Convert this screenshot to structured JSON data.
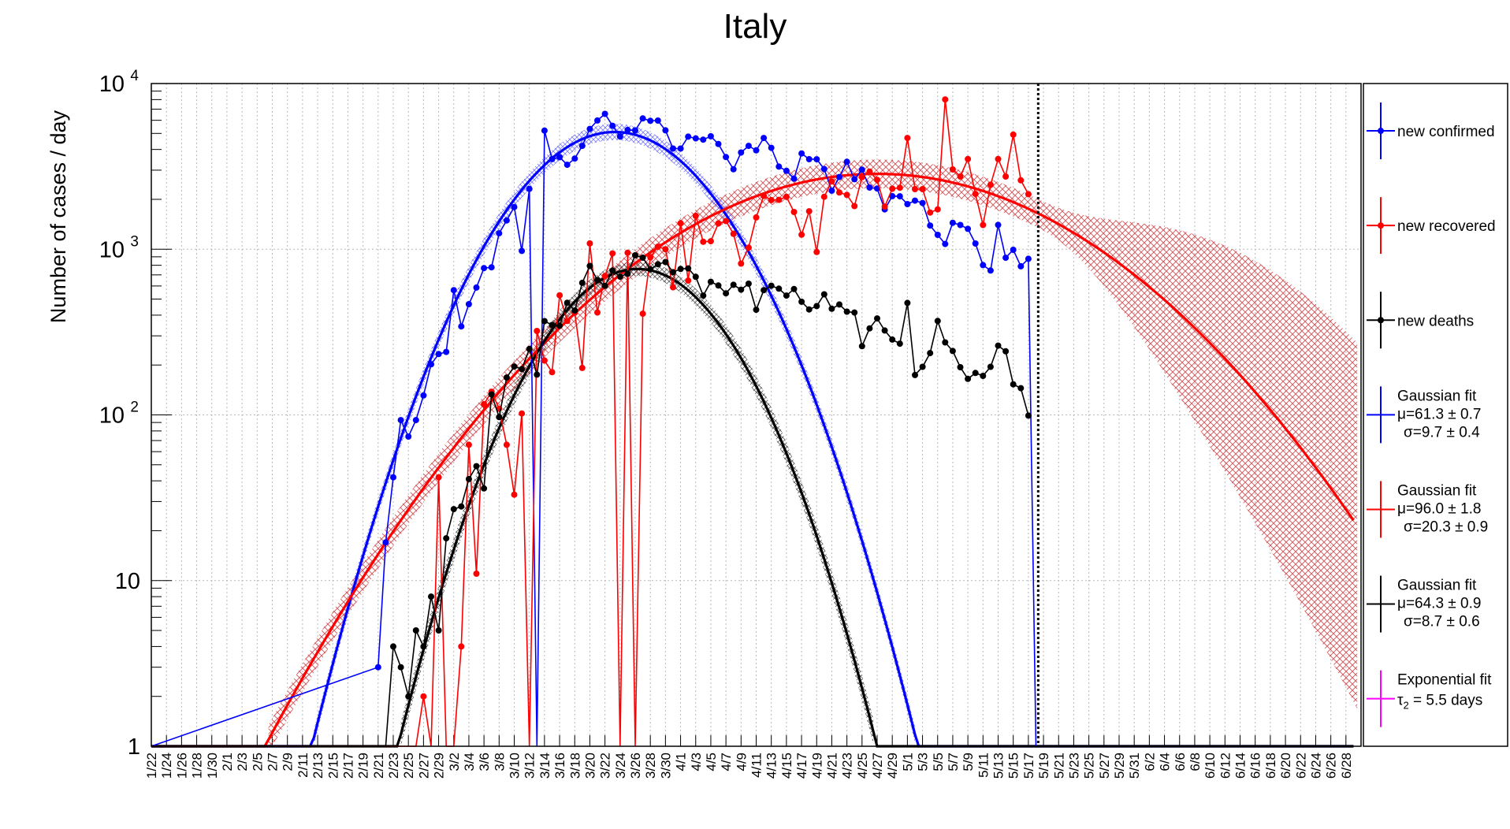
{
  "chart_data": {
    "type": "line",
    "title": "Italy",
    "xlabel": "",
    "ylabel": "Number of cases / day",
    "y_scale": "log",
    "ylim": [
      1,
      10000
    ],
    "y_ticks": [
      {
        "value": 1,
        "label": "1"
      },
      {
        "value": 10,
        "label": "10"
      },
      {
        "value": 100,
        "label": "10",
        "exp": "2"
      },
      {
        "value": 1000,
        "label": "10",
        "exp": "3"
      },
      {
        "value": 10000,
        "label": "10",
        "exp": "4"
      }
    ],
    "x_tick_labels": [
      "1/22",
      "1/24",
      "1/26",
      "1/28",
      "1/30",
      "2/1",
      "2/3",
      "2/5",
      "2/7",
      "2/9",
      "2/11",
      "2/13",
      "2/15",
      "2/17",
      "2/19",
      "2/21",
      "2/23",
      "2/25",
      "2/27",
      "2/29",
      "3/2",
      "3/4",
      "3/6",
      "3/8",
      "3/10",
      "3/12",
      "3/14",
      "3/16",
      "3/18",
      "3/20",
      "3/22",
      "3/24",
      "3/26",
      "3/28",
      "3/30",
      "4/1",
      "4/3",
      "4/5",
      "4/7",
      "4/9",
      "4/11",
      "4/13",
      "4/15",
      "4/17",
      "4/19",
      "4/21",
      "4/23",
      "4/25",
      "4/27",
      "4/29",
      "5/1",
      "5/3",
      "5/5",
      "5/7",
      "5/9",
      "5/11",
      "5/13",
      "5/15",
      "5/17",
      "5/19",
      "5/21",
      "5/23",
      "5/25",
      "5/27",
      "5/29",
      "5/31",
      "6/2",
      "6/4",
      "6/6",
      "6/8",
      "6/10",
      "6/12",
      "6/14",
      "6/16",
      "6/18",
      "6/20",
      "6/22",
      "6/24",
      "6/26",
      "6/28"
    ],
    "x_day_range": [
      0,
      160
    ],
    "data_end_day": 117,
    "grid": true,
    "legend_position": "right",
    "series": [
      {
        "name": "new confirmed",
        "color": "#0000ff",
        "values": [
          [
            0,
            1
          ],
          [
            30,
            3
          ],
          [
            31,
            17
          ],
          [
            32,
            42
          ],
          [
            33,
            93
          ],
          [
            34,
            74
          ],
          [
            35,
            93
          ],
          [
            36,
            131
          ],
          [
            37,
            202
          ],
          [
            38,
            233
          ],
          [
            39,
            240
          ],
          [
            40,
            566
          ],
          [
            41,
            342
          ],
          [
            42,
            466
          ],
          [
            43,
            587
          ],
          [
            44,
            769
          ],
          [
            45,
            778
          ],
          [
            46,
            1247
          ],
          [
            47,
            1492
          ],
          [
            48,
            1797
          ],
          [
            49,
            977
          ],
          [
            50,
            2313
          ],
          [
            51,
            1
          ],
          [
            52,
            5198
          ],
          [
            53,
            3497
          ],
          [
            54,
            3590
          ],
          [
            55,
            3233
          ],
          [
            56,
            3526
          ],
          [
            57,
            4207
          ],
          [
            58,
            5322
          ],
          [
            59,
            5986
          ],
          [
            60,
            6557
          ],
          [
            61,
            5560
          ],
          [
            62,
            4789
          ],
          [
            63,
            5249
          ],
          [
            64,
            5210
          ],
          [
            65,
            6153
          ],
          [
            66,
            5959
          ],
          [
            67,
            5974
          ],
          [
            68,
            5217
          ],
          [
            69,
            4050
          ],
          [
            70,
            4053
          ],
          [
            71,
            4782
          ],
          [
            72,
            4668
          ],
          [
            73,
            4585
          ],
          [
            74,
            4805
          ],
          [
            75,
            4316
          ],
          [
            76,
            3599
          ],
          [
            77,
            3039
          ],
          [
            78,
            3836
          ],
          [
            79,
            4204
          ],
          [
            80,
            3951
          ],
          [
            81,
            4694
          ],
          [
            82,
            4092
          ],
          [
            83,
            3153
          ],
          [
            84,
            2972
          ],
          [
            85,
            2667
          ],
          [
            86,
            3786
          ],
          [
            87,
            3493
          ],
          [
            88,
            3491
          ],
          [
            89,
            3047
          ],
          [
            90,
            2256
          ],
          [
            91,
            2729
          ],
          [
            92,
            3370
          ],
          [
            93,
            2646
          ],
          [
            94,
            3021
          ],
          [
            95,
            2357
          ],
          [
            96,
            2324
          ],
          [
            97,
            1739
          ],
          [
            98,
            2091
          ],
          [
            99,
            2086
          ],
          [
            100,
            1872
          ],
          [
            101,
            1965
          ],
          [
            102,
            1900
          ],
          [
            103,
            1389
          ],
          [
            104,
            1221
          ],
          [
            105,
            1075
          ],
          [
            106,
            1444
          ],
          [
            107,
            1401
          ],
          [
            108,
            1327
          ],
          [
            109,
            1083
          ],
          [
            110,
            802
          ],
          [
            111,
            744
          ],
          [
            112,
            1402
          ],
          [
            113,
            888
          ],
          [
            114,
            992
          ],
          [
            115,
            789
          ],
          [
            116,
            875
          ],
          [
            117,
            1
          ]
        ]
      },
      {
        "name": "new recovered",
        "color": "#ff0000",
        "values": [
          [
            0,
            1
          ],
          [
            35,
            1
          ],
          [
            36,
            2
          ],
          [
            37,
            1
          ],
          [
            38,
            42
          ],
          [
            39,
            1
          ],
          [
            40,
            1
          ],
          [
            41,
            4
          ],
          [
            42,
            66
          ],
          [
            43,
            11
          ],
          [
            44,
            116
          ],
          [
            45,
            138
          ],
          [
            46,
            109
          ],
          [
            47,
            66
          ],
          [
            48,
            33
          ],
          [
            49,
            102
          ],
          [
            50,
            1
          ],
          [
            51,
            321
          ],
          [
            52,
            213
          ],
          [
            53,
            181
          ],
          [
            54,
            527
          ],
          [
            55,
            369
          ],
          [
            56,
            414
          ],
          [
            57,
            192
          ],
          [
            58,
            1084
          ],
          [
            59,
            415
          ],
          [
            60,
            689
          ],
          [
            61,
            943
          ],
          [
            62,
            1
          ],
          [
            63,
            952
          ],
          [
            64,
            1
          ],
          [
            65,
            408
          ],
          [
            66,
            894
          ],
          [
            67,
            1036
          ],
          [
            68,
            999
          ],
          [
            69,
            589
          ],
          [
            70,
            1434
          ],
          [
            71,
            646
          ],
          [
            72,
            1590
          ],
          [
            73,
            1109
          ],
          [
            74,
            1118
          ],
          [
            75,
            1431
          ],
          [
            76,
            1480
          ],
          [
            77,
            1238
          ],
          [
            78,
            819
          ],
          [
            79,
            1022
          ],
          [
            80,
            1555
          ],
          [
            81,
            2099
          ],
          [
            82,
            1979
          ],
          [
            83,
            1985
          ],
          [
            84,
            2072
          ],
          [
            85,
            1677
          ],
          [
            86,
            1224
          ],
          [
            87,
            1695
          ],
          [
            88,
            962
          ],
          [
            89,
            2072
          ],
          [
            90,
            2563
          ],
          [
            91,
            2200
          ],
          [
            92,
            2128
          ],
          [
            93,
            1822
          ],
          [
            94,
            2723
          ],
          [
            95,
            2943
          ],
          [
            96,
            2622
          ],
          [
            97,
            1808
          ],
          [
            98,
            2317
          ],
          [
            99,
            2352
          ],
          [
            100,
            4693
          ],
          [
            101,
            2304
          ],
          [
            102,
            2304
          ],
          [
            103,
            1665
          ],
          [
            104,
            1740
          ],
          [
            105,
            8014
          ],
          [
            106,
            3031
          ],
          [
            107,
            2747
          ],
          [
            108,
            3502
          ],
          [
            109,
            2155
          ],
          [
            110,
            1401
          ],
          [
            111,
            2452
          ],
          [
            112,
            3502
          ],
          [
            113,
            2747
          ],
          [
            114,
            4917
          ],
          [
            115,
            2605
          ],
          [
            116,
            2150
          ]
        ]
      },
      {
        "name": "new deaths",
        "color": "#000000",
        "values": [
          [
            0,
            1
          ],
          [
            31,
            1
          ],
          [
            32,
            4
          ],
          [
            33,
            3
          ],
          [
            34,
            2
          ],
          [
            35,
            5
          ],
          [
            36,
            4
          ],
          [
            37,
            8
          ],
          [
            38,
            5
          ],
          [
            39,
            18
          ],
          [
            40,
            27
          ],
          [
            41,
            28
          ],
          [
            42,
            41
          ],
          [
            43,
            49
          ],
          [
            44,
            36
          ],
          [
            45,
            133
          ],
          [
            46,
            97
          ],
          [
            47,
            168
          ],
          [
            48,
            196
          ],
          [
            49,
            189
          ],
          [
            50,
            250
          ],
          [
            51,
            175
          ],
          [
            52,
            368
          ],
          [
            53,
            349
          ],
          [
            54,
            345
          ],
          [
            55,
            475
          ],
          [
            56,
            427
          ],
          [
            57,
            627
          ],
          [
            58,
            793
          ],
          [
            59,
            651
          ],
          [
            60,
            601
          ],
          [
            61,
            743
          ],
          [
            62,
            683
          ],
          [
            63,
            712
          ],
          [
            64,
            919
          ],
          [
            65,
            889
          ],
          [
            66,
            756
          ],
          [
            67,
            812
          ],
          [
            68,
            837
          ],
          [
            69,
            727
          ],
          [
            70,
            760
          ],
          [
            71,
            766
          ],
          [
            72,
            681
          ],
          [
            73,
            525
          ],
          [
            74,
            636
          ],
          [
            75,
            604
          ],
          [
            76,
            542
          ],
          [
            77,
            610
          ],
          [
            78,
            570
          ],
          [
            79,
            619
          ],
          [
            80,
            431
          ],
          [
            81,
            566
          ],
          [
            82,
            602
          ],
          [
            83,
            578
          ],
          [
            84,
            525
          ],
          [
            85,
            575
          ],
          [
            86,
            482
          ],
          [
            87,
            433
          ],
          [
            88,
            454
          ],
          [
            89,
            534
          ],
          [
            90,
            437
          ],
          [
            91,
            464
          ],
          [
            92,
            420
          ],
          [
            93,
            415
          ],
          [
            94,
            260
          ],
          [
            95,
            333
          ],
          [
            96,
            382
          ],
          [
            97,
            323
          ],
          [
            98,
            285
          ],
          [
            99,
            269
          ],
          [
            100,
            474
          ],
          [
            101,
            174
          ],
          [
            102,
            195
          ],
          [
            103,
            236
          ],
          [
            104,
            369
          ],
          [
            105,
            274
          ],
          [
            106,
            243
          ],
          [
            107,
            194
          ],
          [
            108,
            165
          ],
          [
            109,
            179
          ],
          [
            110,
            172
          ],
          [
            111,
            195
          ],
          [
            112,
            262
          ],
          [
            113,
            242
          ],
          [
            114,
            153
          ],
          [
            115,
            145
          ],
          [
            116,
            99
          ]
        ]
      }
    ],
    "fits": [
      {
        "name": "Gaussian fit",
        "color": "#0000ff",
        "params": [
          "μ=61.3 ± 0.7",
          "σ=9.7 ± 0.4"
        ],
        "mu": 61.3,
        "sigma": 9.7,
        "peak": 5100
      },
      {
        "name": "Gaussian fit",
        "color": "#ff0000",
        "params": [
          "μ=96.0 ± 1.8",
          "σ=20.3 ± 0.9"
        ],
        "mu": 96.0,
        "sigma": 20.3,
        "peak": 2850
      },
      {
        "name": "Gaussian fit",
        "color": "#000000",
        "params": [
          "μ=64.3 ± 0.9",
          "σ=8.7 ± 0.6"
        ],
        "mu": 64.3,
        "sigma": 8.7,
        "peak": 760
      },
      {
        "name": "Exponential fit",
        "color": "#ff00ff",
        "params": [
          "τ2 = 5.5 days"
        ]
      }
    ]
  },
  "legend": {
    "entries": [
      {
        "label": "new confirmed",
        "color": "#0000ff"
      },
      {
        "label": "new recovered",
        "color": "#ff0000"
      },
      {
        "label": "new deaths",
        "color": "#000000"
      },
      {
        "label": "Gaussian fit",
        "line1": "μ=61.3 ± 0.7",
        "line2": "σ=9.7 ± 0.4",
        "color": "#0000ff"
      },
      {
        "label": "Gaussian fit",
        "line1": "μ=96.0 ± 1.8",
        "line2": "σ=20.3 ± 0.9",
        "color": "#ff0000"
      },
      {
        "label": "Gaussian fit",
        "line1": "μ=64.3 ± 0.9",
        "line2": "σ=8.7 ± 0.6",
        "color": "#000000"
      },
      {
        "label": "Exponential fit",
        "line1_sym": "τ",
        "line1_sub": "2",
        "line1_rest": " = 5.5 days",
        "color": "#ff00ff"
      }
    ]
  }
}
